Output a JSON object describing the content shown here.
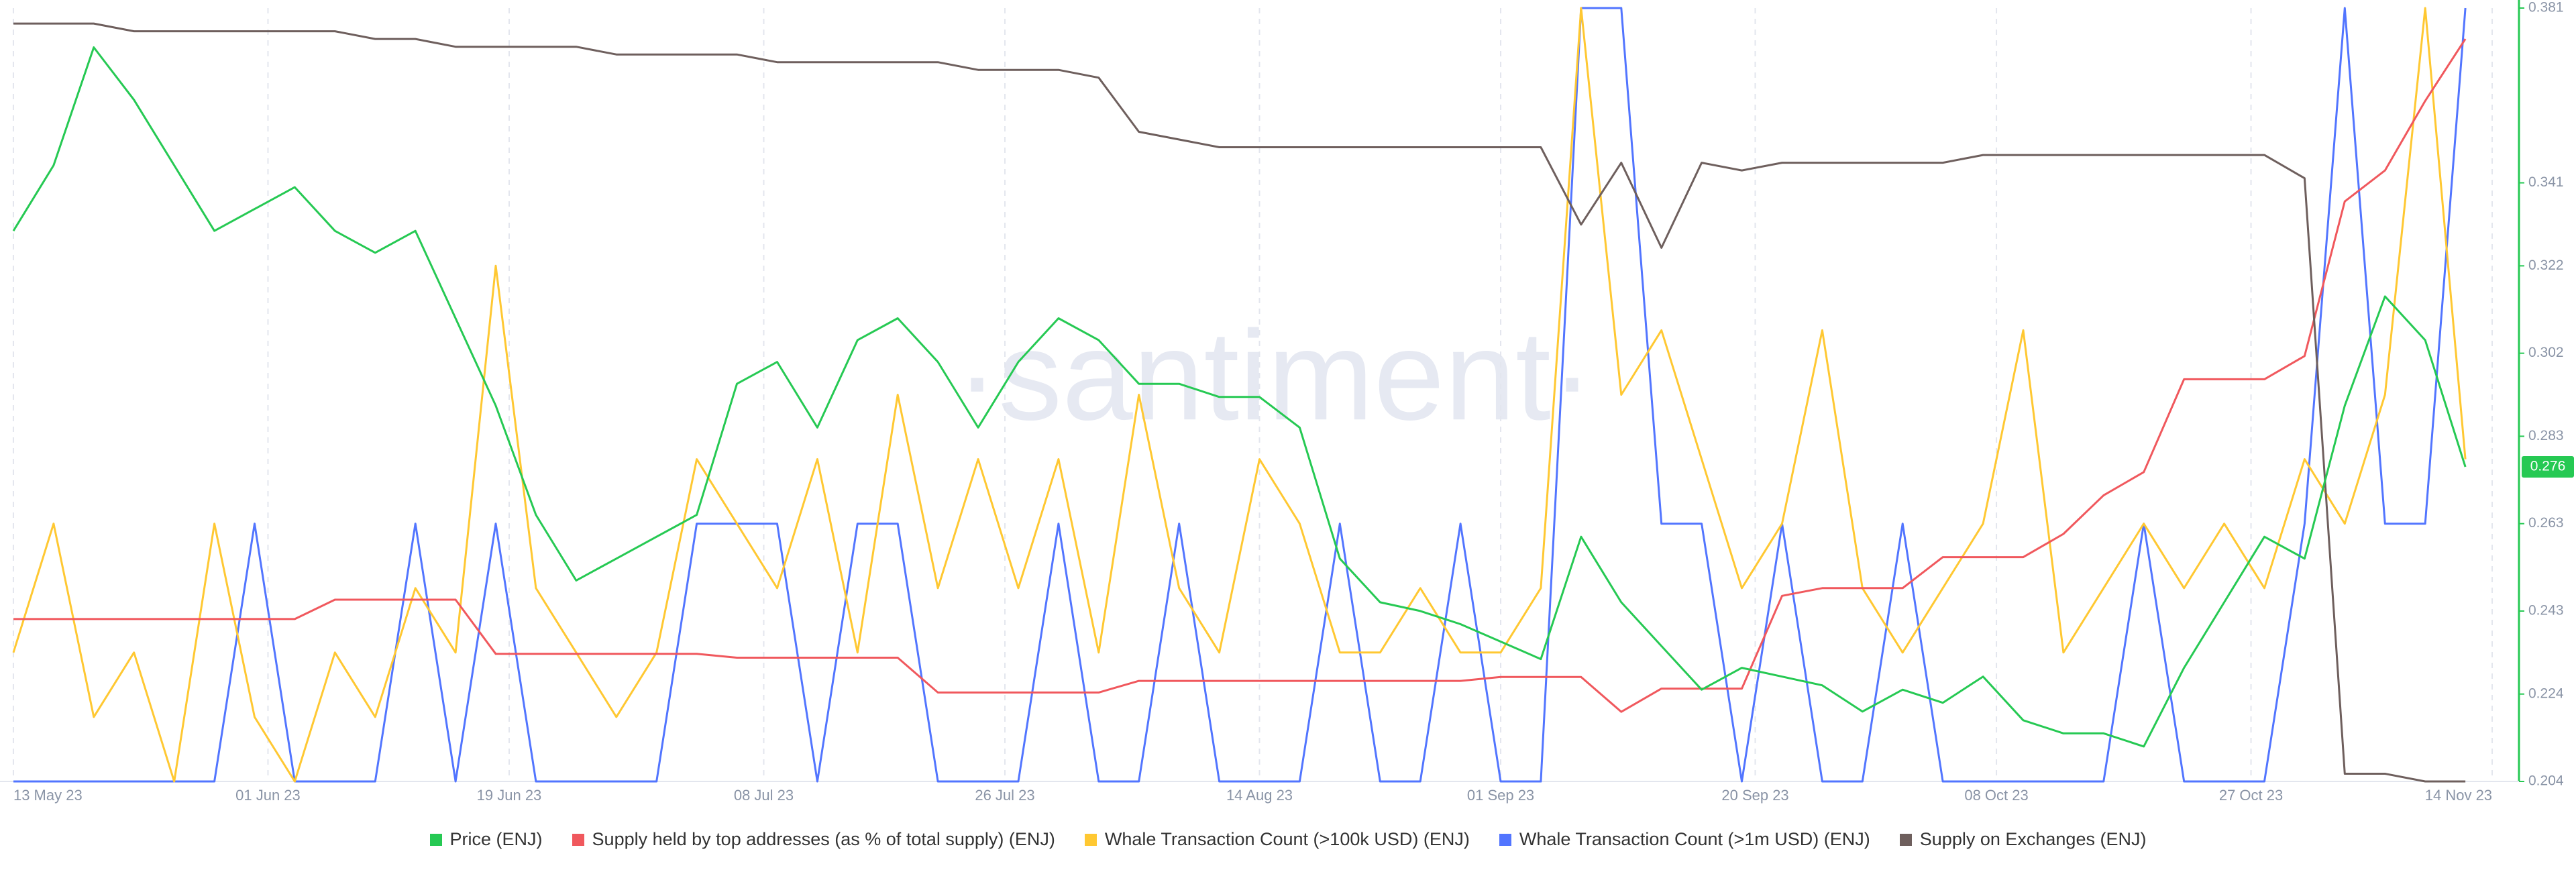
{
  "chart_data": {
    "type": "line",
    "watermark": "·santiment·",
    "x": [
      "2023-05-13",
      "2023-05-16",
      "2023-05-19",
      "2023-05-22",
      "2023-05-25",
      "2023-05-28",
      "2023-05-31",
      "2023-06-03",
      "2023-06-06",
      "2023-06-09",
      "2023-06-12",
      "2023-06-15",
      "2023-06-18",
      "2023-06-21",
      "2023-06-24",
      "2023-06-27",
      "2023-06-30",
      "2023-07-03",
      "2023-07-06",
      "2023-07-09",
      "2023-07-12",
      "2023-07-15",
      "2023-07-18",
      "2023-07-21",
      "2023-07-24",
      "2023-07-27",
      "2023-07-30",
      "2023-08-02",
      "2023-08-05",
      "2023-08-08",
      "2023-08-11",
      "2023-08-14",
      "2023-08-17",
      "2023-08-20",
      "2023-08-23",
      "2023-08-26",
      "2023-08-29",
      "2023-09-01",
      "2023-09-04",
      "2023-09-07",
      "2023-09-10",
      "2023-09-13",
      "2023-09-16",
      "2023-09-19",
      "2023-09-22",
      "2023-09-25",
      "2023-09-28",
      "2023-10-01",
      "2023-10-04",
      "2023-10-07",
      "2023-10-10",
      "2023-10-13",
      "2023-10-16",
      "2023-10-19",
      "2023-10-22",
      "2023-10-25",
      "2023-10-28",
      "2023-10-31",
      "2023-11-03",
      "2023-11-06",
      "2023-11-09",
      "2023-11-12"
    ],
    "xlim": [
      "2023-05-12",
      "2023-11-16"
    ],
    "xticks": [
      {
        "value": "2023-05-13",
        "label": "13 May 23"
      },
      {
        "value": "2023-06-01",
        "label": "01 Jun 23"
      },
      {
        "value": "2023-06-19",
        "label": "19 Jun 23"
      },
      {
        "value": "2023-07-08",
        "label": "08 Jul 23"
      },
      {
        "value": "2023-07-26",
        "label": "26 Jul 23"
      },
      {
        "value": "2023-08-14",
        "label": "14 Aug 23"
      },
      {
        "value": "2023-09-01",
        "label": "01 Sep 23"
      },
      {
        "value": "2023-09-20",
        "label": "20 Sep 23"
      },
      {
        "value": "2023-10-08",
        "label": "08 Oct 23"
      },
      {
        "value": "2023-10-27",
        "label": "27 Oct 23"
      },
      {
        "value": "2023-11-14",
        "label": "14 Nov 23"
      }
    ],
    "ylim": [
      0.204,
      0.381
    ],
    "yticks": [
      0.204,
      0.224,
      0.243,
      0.263,
      0.283,
      0.302,
      0.322,
      0.341,
      0.381
    ],
    "axis_color": "#26c953",
    "grid": true,
    "current_value": 0.276,
    "series": [
      {
        "name": "Whale Transaction Count (>1m USD) (ENJ)",
        "color": "#5275ff",
        "ylim": [
          0,
          3
        ],
        "legend_order": 3,
        "values": [
          0,
          0,
          0,
          0,
          0,
          0,
          1,
          0,
          0,
          0,
          1,
          0,
          1,
          0,
          0,
          0,
          0,
          1,
          1,
          1,
          0,
          1,
          1,
          0,
          0,
          0,
          1,
          0,
          0,
          1,
          0,
          0,
          0,
          1,
          0,
          0,
          1,
          0,
          0,
          3,
          3,
          1,
          1,
          0,
          1,
          0,
          0,
          1,
          0,
          0,
          0,
          0,
          0,
          1,
          0,
          0,
          0,
          1,
          3,
          1,
          1,
          3
        ]
      },
      {
        "name": "Whale Transaction Count (>100k USD) (ENJ)",
        "color": "#ffc832",
        "ylim": [
          0,
          12
        ],
        "legend_order": 2,
        "values": [
          2,
          4,
          1,
          2,
          0,
          4,
          1,
          0,
          2,
          1,
          3,
          2,
          8,
          3,
          2,
          1,
          2,
          5,
          4,
          3,
          5,
          2,
          6,
          3,
          5,
          3,
          5,
          2,
          6,
          3,
          2,
          5,
          4,
          2,
          2,
          3,
          2,
          2,
          3,
          12,
          6,
          7,
          5,
          3,
          4,
          7,
          3,
          2,
          3,
          4,
          7,
          2,
          3,
          4,
          3,
          4,
          3,
          5,
          4,
          6,
          12,
          5
        ]
      },
      {
        "name": "Supply held by top addresses (as % of total supply) (ENJ)",
        "color": "#f0585d",
        "ylim": [
          40,
          60
        ],
        "legend_order": 1,
        "values": [
          44.2,
          44.2,
          44.2,
          44.2,
          44.2,
          44.2,
          44.2,
          44.2,
          44.7,
          44.7,
          44.7,
          44.7,
          43.3,
          43.3,
          43.3,
          43.3,
          43.3,
          43.3,
          43.2,
          43.2,
          43.2,
          43.2,
          43.2,
          42.3,
          42.3,
          42.3,
          42.3,
          42.3,
          42.6,
          42.6,
          42.6,
          42.6,
          42.6,
          42.6,
          42.6,
          42.6,
          42.6,
          42.7,
          42.7,
          42.7,
          41.8,
          42.4,
          42.4,
          42.4,
          44.8,
          45,
          45,
          45,
          45.8,
          45.8,
          45.8,
          46.4,
          47.4,
          48,
          50.4,
          50.4,
          50.4,
          51,
          55,
          55.8,
          57.6,
          59.2
        ]
      },
      {
        "name": "Supply on Exchanges (ENJ)",
        "color": "#6e5f5d",
        "ylim": [
          100,
          200
        ],
        "legend_order": 4,
        "values": [
          198,
          198,
          198,
          197,
          197,
          197,
          197,
          197,
          197,
          196,
          196,
          195,
          195,
          195,
          195,
          194,
          194,
          194,
          194,
          193,
          193,
          193,
          193,
          193,
          192,
          192,
          192,
          191,
          184,
          183,
          182,
          182,
          182,
          182,
          182,
          182,
          182,
          182,
          182,
          172,
          180,
          169,
          180,
          179,
          180,
          180,
          180,
          180,
          180,
          181,
          181,
          181,
          181,
          181,
          181,
          181,
          181,
          178,
          101,
          101,
          100,
          100
        ]
      },
      {
        "name": "Price (ENJ)",
        "color": "#26c953",
        "legend_order": 0,
        "values": [
          0.33,
          0.345,
          0.372,
          0.36,
          0.345,
          0.33,
          0.335,
          0.34,
          0.33,
          0.325,
          0.33,
          0.31,
          0.29,
          0.265,
          0.25,
          0.255,
          0.26,
          0.265,
          0.295,
          0.3,
          0.285,
          0.305,
          0.31,
          0.3,
          0.285,
          0.3,
          0.31,
          0.305,
          0.295,
          0.295,
          0.292,
          0.292,
          0.285,
          0.255,
          0.245,
          0.243,
          0.24,
          0.236,
          0.232,
          0.26,
          0.245,
          0.235,
          0.225,
          0.23,
          0.228,
          0.226,
          0.22,
          0.225,
          0.222,
          0.228,
          0.218,
          0.215,
          0.215,
          0.212,
          0.23,
          0.245,
          0.26,
          0.255,
          0.29,
          0.315,
          0.305,
          0.276
        ]
      }
    ]
  }
}
